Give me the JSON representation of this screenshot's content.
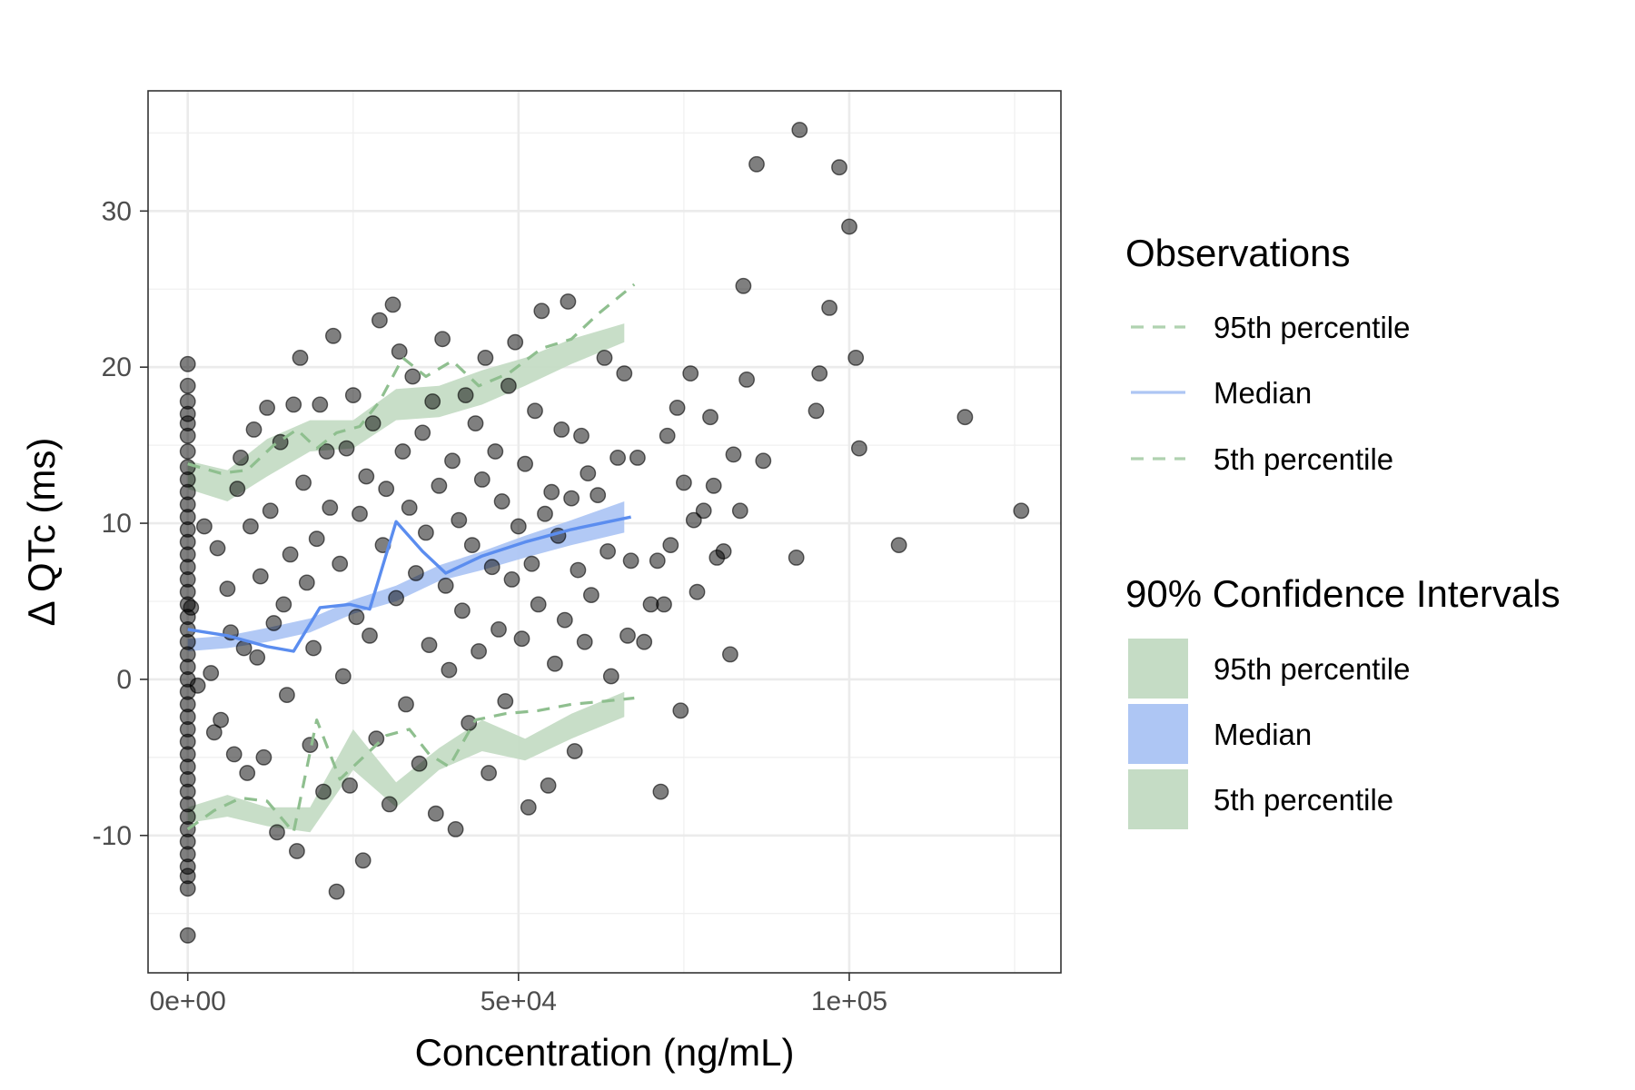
{
  "chart_data": {
    "type": "scatter",
    "xlabel": "Concentration (ng/mL)",
    "ylabel": "Δ QTc (ms)",
    "xlim": [
      -6000,
      132000
    ],
    "ylim": [
      -18.8,
      37.7
    ],
    "x_ticks": [
      {
        "value": 0,
        "label": "0e+00"
      },
      {
        "value": 50000,
        "label": "5e+04"
      },
      {
        "value": 100000,
        "label": "1e+05"
      }
    ],
    "y_ticks": [
      {
        "value": -10,
        "label": "-10"
      },
      {
        "value": 0,
        "label": "0"
      },
      {
        "value": 10,
        "label": "10"
      },
      {
        "value": 20,
        "label": "20"
      },
      {
        "value": 30,
        "label": "30"
      }
    ],
    "grid": true,
    "colors": {
      "points": "#000000",
      "median_line": "#5b8def",
      "median_ribbon": "#aec6f4",
      "percentile_line": "#8fbf8f",
      "percentile_ribbon": "#c5dcc5"
    },
    "bins_x": [
      0,
      6000,
      12000,
      18500,
      25000,
      31500,
      38000,
      44500,
      51000,
      58000,
      66000
    ],
    "median_line": {
      "x": [
        0,
        6000,
        12000,
        16000,
        20000,
        24500,
        27500,
        31500,
        35500,
        39000,
        44500,
        51000,
        58000,
        67000
      ],
      "y": [
        3.2,
        2.8,
        2.1,
        1.8,
        4.6,
        4.8,
        4.5,
        10.1,
        8.2,
        6.8,
        7.9,
        8.8,
        9.6,
        10.4
      ]
    },
    "median_ribbon": {
      "low": [
        1.8,
        2.0,
        2.4,
        3.0,
        4.2,
        5.0,
        6.3,
        7.0,
        7.8,
        8.6,
        9.4
      ],
      "high": [
        2.6,
        2.8,
        3.3,
        3.9,
        5.1,
        6.0,
        7.3,
        8.2,
        9.2,
        10.2,
        11.4
      ]
    },
    "p95_line": {
      "x": [
        0,
        5000,
        9000,
        13000,
        16500,
        19500,
        22500,
        26000,
        29000,
        32500,
        36000,
        40000,
        44000,
        48500,
        53500,
        58000,
        62000,
        67500
      ],
      "y": [
        13.8,
        13.2,
        13.4,
        15.0,
        16.0,
        14.8,
        15.8,
        16.2,
        17.8,
        20.6,
        19.4,
        20.4,
        18.8,
        19.6,
        21.2,
        21.8,
        23.4,
        25.3
      ]
    },
    "p95_ribbon": {
      "low": [
        12.2,
        11.4,
        13.0,
        14.6,
        14.8,
        16.6,
        16.8,
        17.6,
        18.8,
        20.2,
        21.6
      ],
      "high": [
        14.0,
        13.4,
        15.4,
        16.6,
        16.6,
        18.6,
        18.8,
        19.8,
        20.6,
        21.8,
        22.8
      ]
    },
    "p5_line": {
      "x": [
        0,
        4000,
        8000,
        12000,
        16000,
        19500,
        23000,
        26500,
        30000,
        33500,
        36500,
        39500,
        43500,
        48000,
        53000,
        58000,
        63000,
        67500
      ],
      "y": [
        -9.6,
        -8.4,
        -7.6,
        -7.8,
        -9.8,
        -2.6,
        -6.4,
        -5.0,
        -3.6,
        -3.2,
        -4.8,
        -5.6,
        -2.6,
        -2.2,
        -2.0,
        -1.6,
        -1.4,
        -1.2
      ]
    },
    "p5_ribbon": {
      "low": [
        -9.2,
        -8.8,
        -9.4,
        -9.8,
        -5.8,
        -8.2,
        -5.8,
        -4.6,
        -5.2,
        -3.8,
        -2.4
      ],
      "high": [
        -8.2,
        -7.4,
        -8.2,
        -8.2,
        -3.2,
        -6.6,
        -4.4,
        -2.6,
        -3.8,
        -2.2,
        -0.8
      ]
    },
    "points": [
      [
        0,
        -16.4
      ],
      [
        0,
        -13.4
      ],
      [
        0,
        -12.6
      ],
      [
        0,
        -12.0
      ],
      [
        0,
        -11.2
      ],
      [
        0,
        -10.4
      ],
      [
        0,
        -9.6
      ],
      [
        0,
        -8.8
      ],
      [
        0,
        -8.0
      ],
      [
        0,
        -7.2
      ],
      [
        0,
        -6.4
      ],
      [
        0,
        -5.6
      ],
      [
        0,
        -4.8
      ],
      [
        0,
        -4.0
      ],
      [
        0,
        -3.2
      ],
      [
        0,
        -2.4
      ],
      [
        0,
        -1.6
      ],
      [
        0,
        -0.8
      ],
      [
        0,
        0.0
      ],
      [
        0,
        0.8
      ],
      [
        0,
        1.6
      ],
      [
        0,
        2.4
      ],
      [
        0,
        3.2
      ],
      [
        0,
        4.0
      ],
      [
        0,
        4.8
      ],
      [
        0,
        5.6
      ],
      [
        0,
        6.4
      ],
      [
        0,
        7.2
      ],
      [
        0,
        8.0
      ],
      [
        0,
        8.8
      ],
      [
        0,
        9.6
      ],
      [
        0,
        10.4
      ],
      [
        0,
        11.2
      ],
      [
        0,
        12.0
      ],
      [
        0,
        12.8
      ],
      [
        0,
        13.6
      ],
      [
        0,
        14.6
      ],
      [
        0,
        15.6
      ],
      [
        0,
        16.4
      ],
      [
        0,
        17.0
      ],
      [
        0,
        17.8
      ],
      [
        0,
        18.8
      ],
      [
        0,
        20.2
      ],
      [
        500,
        4.6
      ],
      [
        1500,
        -0.4
      ],
      [
        2500,
        9.8
      ],
      [
        3500,
        0.4
      ],
      [
        4000,
        -3.4
      ],
      [
        4500,
        8.4
      ],
      [
        5000,
        -2.6
      ],
      [
        6000,
        5.8
      ],
      [
        6500,
        3.0
      ],
      [
        7000,
        -4.8
      ],
      [
        7500,
        12.2
      ],
      [
        8000,
        14.2
      ],
      [
        8500,
        2.0
      ],
      [
        9000,
        -6.0
      ],
      [
        9500,
        9.8
      ],
      [
        10000,
        16.0
      ],
      [
        10500,
        1.4
      ],
      [
        11000,
        6.6
      ],
      [
        11500,
        -5.0
      ],
      [
        12000,
        17.4
      ],
      [
        12500,
        10.8
      ],
      [
        13000,
        3.6
      ],
      [
        13500,
        -9.8
      ],
      [
        14000,
        15.2
      ],
      [
        14500,
        4.8
      ],
      [
        15000,
        -1.0
      ],
      [
        15500,
        8.0
      ],
      [
        16000,
        17.6
      ],
      [
        16500,
        -11.0
      ],
      [
        17000,
        20.6
      ],
      [
        17500,
        12.6
      ],
      [
        18000,
        6.2
      ],
      [
        18500,
        -4.2
      ],
      [
        19000,
        2.0
      ],
      [
        19500,
        9.0
      ],
      [
        20000,
        17.6
      ],
      [
        20500,
        -7.2
      ],
      [
        21000,
        14.6
      ],
      [
        21500,
        11.0
      ],
      [
        22000,
        22.0
      ],
      [
        22500,
        -13.6
      ],
      [
        23000,
        7.4
      ],
      [
        23500,
        0.2
      ],
      [
        24000,
        14.8
      ],
      [
        24500,
        -6.8
      ],
      [
        25000,
        18.2
      ],
      [
        25500,
        4.0
      ],
      [
        26000,
        10.6
      ],
      [
        26500,
        -11.6
      ],
      [
        27000,
        13.0
      ],
      [
        27500,
        2.8
      ],
      [
        28000,
        16.4
      ],
      [
        28500,
        -3.8
      ],
      [
        29000,
        23.0
      ],
      [
        29500,
        8.6
      ],
      [
        30000,
        12.2
      ],
      [
        30500,
        -8.0
      ],
      [
        31000,
        24.0
      ],
      [
        31500,
        5.2
      ],
      [
        32000,
        21.0
      ],
      [
        32500,
        14.6
      ],
      [
        33000,
        -1.6
      ],
      [
        33500,
        11.0
      ],
      [
        34000,
        19.4
      ],
      [
        34500,
        6.8
      ],
      [
        35000,
        -5.4
      ],
      [
        35500,
        15.8
      ],
      [
        36000,
        9.4
      ],
      [
        36500,
        2.2
      ],
      [
        37000,
        17.8
      ],
      [
        37500,
        -8.6
      ],
      [
        38000,
        12.4
      ],
      [
        38500,
        21.8
      ],
      [
        39000,
        6.0
      ],
      [
        39500,
        0.6
      ],
      [
        40000,
        14.0
      ],
      [
        40500,
        -9.6
      ],
      [
        41000,
        10.2
      ],
      [
        41500,
        4.4
      ],
      [
        42000,
        18.2
      ],
      [
        42500,
        -2.8
      ],
      [
        43000,
        8.6
      ],
      [
        43500,
        16.4
      ],
      [
        44000,
        1.8
      ],
      [
        44500,
        12.8
      ],
      [
        45000,
        20.6
      ],
      [
        45500,
        -6.0
      ],
      [
        46000,
        7.2
      ],
      [
        46500,
        14.6
      ],
      [
        47000,
        3.2
      ],
      [
        47500,
        11.4
      ],
      [
        48000,
        -1.4
      ],
      [
        48500,
        18.8
      ],
      [
        49000,
        6.4
      ],
      [
        49500,
        21.6
      ],
      [
        50000,
        9.8
      ],
      [
        50500,
        2.6
      ],
      [
        51000,
        13.8
      ],
      [
        51500,
        -8.2
      ],
      [
        52000,
        7.4
      ],
      [
        52500,
        17.2
      ],
      [
        53000,
        4.8
      ],
      [
        53500,
        23.6
      ],
      [
        54000,
        10.6
      ],
      [
        54500,
        -6.8
      ],
      [
        55000,
        12.0
      ],
      [
        55500,
        1.0
      ],
      [
        56000,
        9.2
      ],
      [
        56500,
        16.0
      ],
      [
        57000,
        3.8
      ],
      [
        57500,
        24.2
      ],
      [
        58000,
        11.6
      ],
      [
        58500,
        -4.6
      ],
      [
        59000,
        7.0
      ],
      [
        59500,
        15.6
      ],
      [
        60000,
        2.4
      ],
      [
        60500,
        13.2
      ],
      [
        61000,
        5.4
      ],
      [
        62000,
        11.8
      ],
      [
        63000,
        20.6
      ],
      [
        63500,
        8.2
      ],
      [
        64000,
        0.2
      ],
      [
        65000,
        14.2
      ],
      [
        66000,
        19.6
      ],
      [
        66500,
        2.8
      ],
      [
        67000,
        7.6
      ],
      [
        68000,
        14.2
      ],
      [
        69000,
        2.4
      ],
      [
        70000,
        4.8
      ],
      [
        71000,
        7.6
      ],
      [
        71500,
        -7.2
      ],
      [
        72000,
        4.8
      ],
      [
        72500,
        15.6
      ],
      [
        73000,
        8.6
      ],
      [
        74000,
        17.4
      ],
      [
        74500,
        -2.0
      ],
      [
        75000,
        12.6
      ],
      [
        76000,
        19.6
      ],
      [
        76500,
        10.2
      ],
      [
        77000,
        5.6
      ],
      [
        78000,
        10.8
      ],
      [
        79000,
        16.8
      ],
      [
        79500,
        12.4
      ],
      [
        80000,
        7.8
      ],
      [
        81000,
        8.2
      ],
      [
        82000,
        1.6
      ],
      [
        82500,
        14.4
      ],
      [
        83500,
        10.8
      ],
      [
        84000,
        25.2
      ],
      [
        84500,
        19.2
      ],
      [
        86000,
        33.0
      ],
      [
        87000,
        14.0
      ],
      [
        92000,
        7.8
      ],
      [
        92500,
        35.2
      ],
      [
        95000,
        17.2
      ],
      [
        95500,
        19.6
      ],
      [
        97000,
        23.8
      ],
      [
        98500,
        32.8
      ],
      [
        100000,
        29.0
      ],
      [
        101000,
        20.6
      ],
      [
        101500,
        14.8
      ],
      [
        107500,
        8.6
      ],
      [
        117500,
        16.8
      ],
      [
        126000,
        10.8
      ]
    ],
    "legend": {
      "placement": "right",
      "groups": [
        {
          "title": "Observations",
          "items": [
            {
              "label": "95th percentile",
              "style": "dashed"
            },
            {
              "label": "Median",
              "style": "solid"
            },
            {
              "label": "5th percentile",
              "style": "dashed"
            }
          ]
        },
        {
          "title": "90% Confidence Intervals",
          "items": [
            {
              "label": "95th percentile",
              "color": "#c5dcc5"
            },
            {
              "label": "Median",
              "color": "#aec6f4"
            },
            {
              "label": "5th percentile",
              "color": "#c5dcc5"
            }
          ]
        }
      ]
    }
  }
}
